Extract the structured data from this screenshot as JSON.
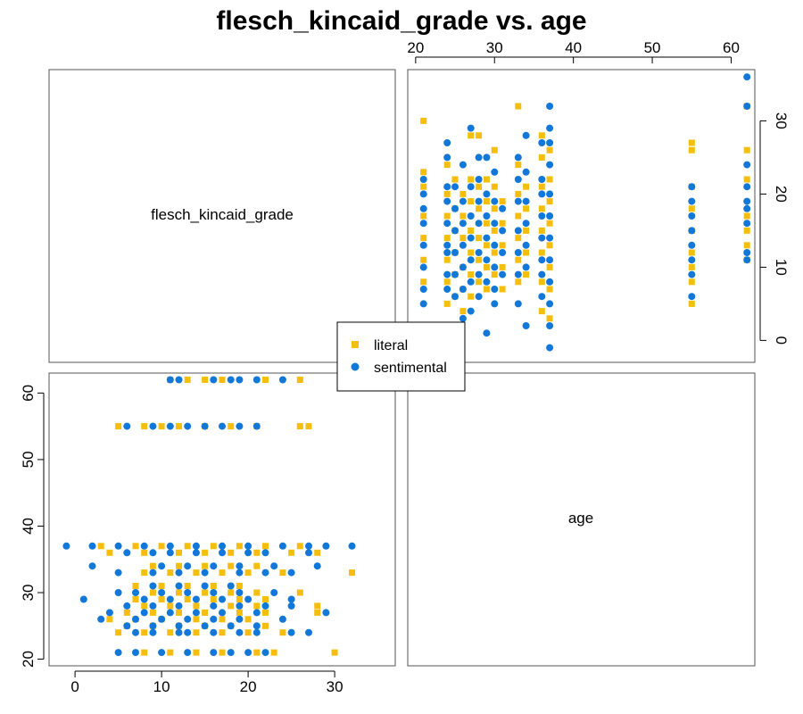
{
  "chart_data": {
    "type": "scatter",
    "title": "flesch_kincaid_grade vs. age",
    "variables": [
      "flesch_kincaid_grade",
      "age"
    ],
    "legend": {
      "position": "center",
      "entries": [
        "literal",
        "sentimental"
      ]
    },
    "colors": {
      "literal": "#F5BE0D",
      "sentimental": "#1177D8"
    },
    "markers": {
      "literal": "square",
      "sentimental": "circle"
    },
    "axes": {
      "flesch_kincaid_grade": {
        "range": [
          -3,
          37
        ],
        "ticks": [
          0,
          10,
          20,
          30
        ],
        "tick_labels": [
          "0",
          "10",
          "20",
          "30"
        ]
      },
      "age": {
        "range": [
          19,
          63
        ],
        "ticks": [
          20,
          30,
          40,
          50,
          60
        ],
        "tick_labels": [
          "20",
          "30",
          "40",
          "50",
          "60"
        ]
      }
    },
    "grid": false,
    "series": [
      {
        "name": "literal",
        "points": [
          {
            "age": 21,
            "fk": 30
          },
          {
            "age": 21,
            "fk": 23
          },
          {
            "age": 21,
            "fk": 21
          },
          {
            "age": 21,
            "fk": 17
          },
          {
            "age": 21,
            "fk": 14
          },
          {
            "age": 21,
            "fk": 11
          },
          {
            "age": 21,
            "fk": 8
          },
          {
            "age": 24,
            "fk": 24
          },
          {
            "age": 24,
            "fk": 20
          },
          {
            "age": 24,
            "fk": 17
          },
          {
            "age": 24,
            "fk": 14
          },
          {
            "age": 24,
            "fk": 11
          },
          {
            "age": 24,
            "fk": 8
          },
          {
            "age": 24,
            "fk": 5
          },
          {
            "age": 25,
            "fk": 22
          },
          {
            "age": 25,
            "fk": 18
          },
          {
            "age": 25,
            "fk": 15
          },
          {
            "age": 25,
            "fk": 12
          },
          {
            "age": 25,
            "fk": 9
          },
          {
            "age": 25,
            "fk": 6
          },
          {
            "age": 26,
            "fk": 20
          },
          {
            "age": 26,
            "fk": 17
          },
          {
            "age": 26,
            "fk": 14
          },
          {
            "age": 26,
            "fk": 10
          },
          {
            "age": 26,
            "fk": 7
          },
          {
            "age": 26,
            "fk": 4
          },
          {
            "age": 27,
            "fk": 28
          },
          {
            "age": 27,
            "fk": 22
          },
          {
            "age": 27,
            "fk": 19
          },
          {
            "age": 27,
            "fk": 15
          },
          {
            "age": 27,
            "fk": 12
          },
          {
            "age": 27,
            "fk": 9
          },
          {
            "age": 27,
            "fk": 6
          },
          {
            "age": 28,
            "fk": 28
          },
          {
            "age": 28,
            "fk": 21
          },
          {
            "age": 28,
            "fk": 18
          },
          {
            "age": 28,
            "fk": 14
          },
          {
            "age": 28,
            "fk": 11
          },
          {
            "age": 28,
            "fk": 8
          },
          {
            "age": 29,
            "fk": 22
          },
          {
            "age": 29,
            "fk": 19
          },
          {
            "age": 29,
            "fk": 16
          },
          {
            "age": 29,
            "fk": 13
          },
          {
            "age": 29,
            "fk": 10
          },
          {
            "age": 29,
            "fk": 7
          },
          {
            "age": 30,
            "fk": 26
          },
          {
            "age": 30,
            "fk": 21
          },
          {
            "age": 30,
            "fk": 18
          },
          {
            "age": 30,
            "fk": 15
          },
          {
            "age": 30,
            "fk": 12
          },
          {
            "age": 30,
            "fk": 9
          },
          {
            "age": 31,
            "fk": 19
          },
          {
            "age": 31,
            "fk": 16
          },
          {
            "age": 31,
            "fk": 13
          },
          {
            "age": 31,
            "fk": 10
          },
          {
            "age": 31,
            "fk": 7
          },
          {
            "age": 33,
            "fk": 32
          },
          {
            "age": 33,
            "fk": 24
          },
          {
            "age": 33,
            "fk": 20
          },
          {
            "age": 33,
            "fk": 17
          },
          {
            "age": 33,
            "fk": 14
          },
          {
            "age": 33,
            "fk": 11
          },
          {
            "age": 33,
            "fk": 8
          },
          {
            "age": 34,
            "fk": 21
          },
          {
            "age": 34,
            "fk": 18
          },
          {
            "age": 34,
            "fk": 15
          },
          {
            "age": 34,
            "fk": 12
          },
          {
            "age": 34,
            "fk": 9
          },
          {
            "age": 36,
            "fk": 28
          },
          {
            "age": 36,
            "fk": 25
          },
          {
            "age": 36,
            "fk": 21
          },
          {
            "age": 36,
            "fk": 18
          },
          {
            "age": 36,
            "fk": 15
          },
          {
            "age": 36,
            "fk": 12
          },
          {
            "age": 36,
            "fk": 8
          },
          {
            "age": 36,
            "fk": 4
          },
          {
            "age": 37,
            "fk": 26
          },
          {
            "age": 37,
            "fk": 22
          },
          {
            "age": 37,
            "fk": 19
          },
          {
            "age": 37,
            "fk": 16
          },
          {
            "age": 37,
            "fk": 13
          },
          {
            "age": 37,
            "fk": 10
          },
          {
            "age": 37,
            "fk": 7
          },
          {
            "age": 37,
            "fk": 3
          },
          {
            "age": 55,
            "fk": 27
          },
          {
            "age": 55,
            "fk": 26
          },
          {
            "age": 55,
            "fk": 21
          },
          {
            "age": 55,
            "fk": 18
          },
          {
            "age": 55,
            "fk": 15
          },
          {
            "age": 55,
            "fk": 12
          },
          {
            "age": 55,
            "fk": 10
          },
          {
            "age": 55,
            "fk": 8
          },
          {
            "age": 55,
            "fk": 5
          },
          {
            "age": 62,
            "fk": 32
          },
          {
            "age": 62,
            "fk": 26
          },
          {
            "age": 62,
            "fk": 22
          },
          {
            "age": 62,
            "fk": 17
          },
          {
            "age": 62,
            "fk": 15
          },
          {
            "age": 62,
            "fk": 13
          },
          {
            "age": 62,
            "fk": 11
          }
        ]
      },
      {
        "name": "sentimental",
        "points": [
          {
            "age": 21,
            "fk": 22
          },
          {
            "age": 21,
            "fk": 20
          },
          {
            "age": 21,
            "fk": 18
          },
          {
            "age": 21,
            "fk": 16
          },
          {
            "age": 21,
            "fk": 13
          },
          {
            "age": 21,
            "fk": 10
          },
          {
            "age": 21,
            "fk": 7
          },
          {
            "age": 21,
            "fk": 5
          },
          {
            "age": 24,
            "fk": 27
          },
          {
            "age": 24,
            "fk": 25
          },
          {
            "age": 24,
            "fk": 21
          },
          {
            "age": 24,
            "fk": 19
          },
          {
            "age": 24,
            "fk": 16
          },
          {
            "age": 24,
            "fk": 13
          },
          {
            "age": 24,
            "fk": 12
          },
          {
            "age": 24,
            "fk": 9
          },
          {
            "age": 24,
            "fk": 7
          },
          {
            "age": 25,
            "fk": 21
          },
          {
            "age": 25,
            "fk": 18
          },
          {
            "age": 25,
            "fk": 15
          },
          {
            "age": 25,
            "fk": 12
          },
          {
            "age": 25,
            "fk": 9
          },
          {
            "age": 25,
            "fk": 6
          },
          {
            "age": 26,
            "fk": 24
          },
          {
            "age": 26,
            "fk": 19
          },
          {
            "age": 26,
            "fk": 16
          },
          {
            "age": 26,
            "fk": 13
          },
          {
            "age": 26,
            "fk": 10
          },
          {
            "age": 26,
            "fk": 7
          },
          {
            "age": 26,
            "fk": 3
          },
          {
            "age": 27,
            "fk": 29
          },
          {
            "age": 27,
            "fk": 21
          },
          {
            "age": 27,
            "fk": 17
          },
          {
            "age": 27,
            "fk": 14
          },
          {
            "age": 27,
            "fk": 11
          },
          {
            "age": 27,
            "fk": 8
          },
          {
            "age": 27,
            "fk": 4
          },
          {
            "age": 28,
            "fk": 25
          },
          {
            "age": 28,
            "fk": 22
          },
          {
            "age": 28,
            "fk": 19
          },
          {
            "age": 28,
            "fk": 16
          },
          {
            "age": 28,
            "fk": 12
          },
          {
            "age": 28,
            "fk": 9
          },
          {
            "age": 28,
            "fk": 6
          },
          {
            "age": 29,
            "fk": 25
          },
          {
            "age": 29,
            "fk": 20
          },
          {
            "age": 29,
            "fk": 17
          },
          {
            "age": 29,
            "fk": 14
          },
          {
            "age": 29,
            "fk": 11
          },
          {
            "age": 29,
            "fk": 8
          },
          {
            "age": 29,
            "fk": 1
          },
          {
            "age": 30,
            "fk": 23
          },
          {
            "age": 30,
            "fk": 19
          },
          {
            "age": 30,
            "fk": 16
          },
          {
            "age": 30,
            "fk": 13
          },
          {
            "age": 30,
            "fk": 10
          },
          {
            "age": 30,
            "fk": 7
          },
          {
            "age": 30,
            "fk": 5
          },
          {
            "age": 31,
            "fk": 18
          },
          {
            "age": 31,
            "fk": 15
          },
          {
            "age": 31,
            "fk": 12
          },
          {
            "age": 31,
            "fk": 9
          },
          {
            "age": 33,
            "fk": 25
          },
          {
            "age": 33,
            "fk": 22
          },
          {
            "age": 33,
            "fk": 19
          },
          {
            "age": 33,
            "fk": 15
          },
          {
            "age": 33,
            "fk": 12
          },
          {
            "age": 33,
            "fk": 9
          },
          {
            "age": 33,
            "fk": 5
          },
          {
            "age": 34,
            "fk": 28
          },
          {
            "age": 34,
            "fk": 23
          },
          {
            "age": 34,
            "fk": 19
          },
          {
            "age": 34,
            "fk": 16
          },
          {
            "age": 34,
            "fk": 13
          },
          {
            "age": 34,
            "fk": 10
          },
          {
            "age": 34,
            "fk": 2
          },
          {
            "age": 36,
            "fk": 27
          },
          {
            "age": 36,
            "fk": 22
          },
          {
            "age": 36,
            "fk": 20
          },
          {
            "age": 36,
            "fk": 17
          },
          {
            "age": 36,
            "fk": 14
          },
          {
            "age": 36,
            "fk": 11
          },
          {
            "age": 36,
            "fk": 9
          },
          {
            "age": 36,
            "fk": 6
          },
          {
            "age": 37,
            "fk": 32
          },
          {
            "age": 37,
            "fk": 29
          },
          {
            "age": 37,
            "fk": 27
          },
          {
            "age": 37,
            "fk": 24
          },
          {
            "age": 37,
            "fk": 20
          },
          {
            "age": 37,
            "fk": 17
          },
          {
            "age": 37,
            "fk": 14
          },
          {
            "age": 37,
            "fk": 11
          },
          {
            "age": 37,
            "fk": 8
          },
          {
            "age": 37,
            "fk": 5
          },
          {
            "age": 37,
            "fk": 2
          },
          {
            "age": 37,
            "fk": -1
          },
          {
            "age": 55,
            "fk": 21
          },
          {
            "age": 55,
            "fk": 19
          },
          {
            "age": 55,
            "fk": 17
          },
          {
            "age": 55,
            "fk": 15
          },
          {
            "age": 55,
            "fk": 13
          },
          {
            "age": 55,
            "fk": 11
          },
          {
            "age": 55,
            "fk": 9
          },
          {
            "age": 55,
            "fk": 6
          },
          {
            "age": 62,
            "fk": 36
          },
          {
            "age": 62,
            "fk": 32
          },
          {
            "age": 62,
            "fk": 24
          },
          {
            "age": 62,
            "fk": 21
          },
          {
            "age": 62,
            "fk": 19
          },
          {
            "age": 62,
            "fk": 18
          },
          {
            "age": 62,
            "fk": 16
          },
          {
            "age": 62,
            "fk": 12
          },
          {
            "age": 62,
            "fk": 11
          }
        ]
      }
    ]
  }
}
